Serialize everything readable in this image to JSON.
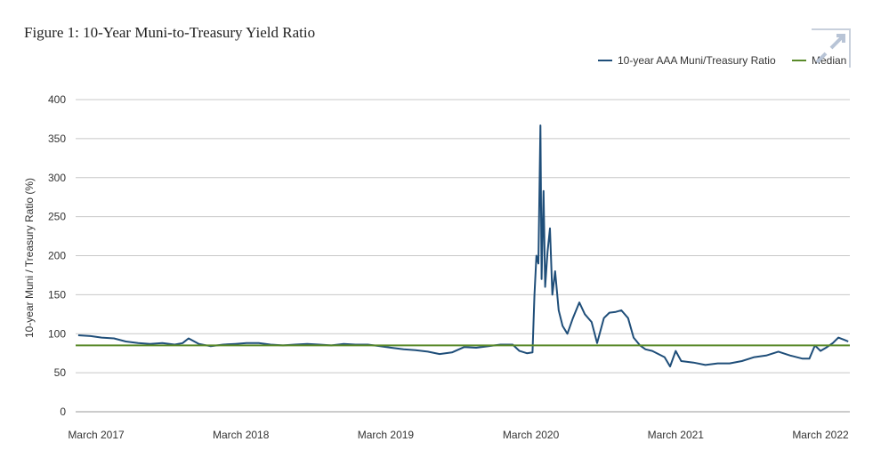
{
  "chart_data": {
    "type": "line",
    "title": "Figure 1: 10-Year Muni-to-Treasury Yield Ratio",
    "ylabel": "10-year Muni / Treasury Ratio (%)",
    "xlabel": "",
    "ylim": [
      0,
      400
    ],
    "yticks": [
      0,
      50,
      100,
      150,
      200,
      250,
      300,
      350,
      400
    ],
    "xticks": [
      {
        "label": "March 2017",
        "date": "2017-03-01"
      },
      {
        "label": "March 2018",
        "date": "2018-03-01"
      },
      {
        "label": "March 2019",
        "date": "2019-03-01"
      },
      {
        "label": "March 2020",
        "date": "2020-03-01"
      },
      {
        "label": "March 2021",
        "date": "2021-03-01"
      },
      {
        "label": "March 2022",
        "date": "2022-03-01"
      }
    ],
    "grid": "horizontal",
    "legend_position": "top-right",
    "series": [
      {
        "name": "10-year AAA Muni/Treasury Ratio",
        "color": "#1f4e79",
        "points": [
          [
            "2017-01-15",
            98
          ],
          [
            "2017-02-15",
            97
          ],
          [
            "2017-03-15",
            95
          ],
          [
            "2017-04-15",
            94
          ],
          [
            "2017-05-15",
            90
          ],
          [
            "2017-06-15",
            88
          ],
          [
            "2017-07-15",
            87
          ],
          [
            "2017-08-15",
            88
          ],
          [
            "2017-09-15",
            86
          ],
          [
            "2017-10-05",
            88
          ],
          [
            "2017-10-20",
            94
          ],
          [
            "2017-11-15",
            87
          ],
          [
            "2017-12-15",
            84
          ],
          [
            "2018-01-15",
            86
          ],
          [
            "2018-02-15",
            87
          ],
          [
            "2018-03-15",
            88
          ],
          [
            "2018-04-15",
            88
          ],
          [
            "2018-05-15",
            86
          ],
          [
            "2018-06-15",
            85
          ],
          [
            "2018-07-15",
            86
          ],
          [
            "2018-08-15",
            87
          ],
          [
            "2018-09-15",
            86
          ],
          [
            "2018-10-15",
            85
          ],
          [
            "2018-11-15",
            87
          ],
          [
            "2018-12-15",
            86
          ],
          [
            "2019-01-15",
            86
          ],
          [
            "2019-02-15",
            84
          ],
          [
            "2019-03-15",
            82
          ],
          [
            "2019-04-15",
            80
          ],
          [
            "2019-05-15",
            79
          ],
          [
            "2019-06-15",
            77
          ],
          [
            "2019-07-15",
            74
          ],
          [
            "2019-08-15",
            76
          ],
          [
            "2019-09-15",
            83
          ],
          [
            "2019-10-15",
            82
          ],
          [
            "2019-11-15",
            84
          ],
          [
            "2019-12-15",
            86
          ],
          [
            "2020-01-15",
            86
          ],
          [
            "2020-02-01",
            78
          ],
          [
            "2020-02-20",
            75
          ],
          [
            "2020-03-05",
            76
          ],
          [
            "2020-03-10",
            150
          ],
          [
            "2020-03-15",
            200
          ],
          [
            "2020-03-20",
            190
          ],
          [
            "2020-03-25",
            367
          ],
          [
            "2020-03-28",
            170
          ],
          [
            "2020-04-02",
            283
          ],
          [
            "2020-04-06",
            160
          ],
          [
            "2020-04-12",
            205
          ],
          [
            "2020-04-18",
            235
          ],
          [
            "2020-04-24",
            150
          ],
          [
            "2020-05-01",
            180
          ],
          [
            "2020-05-10",
            130
          ],
          [
            "2020-05-20",
            110
          ],
          [
            "2020-06-01",
            100
          ],
          [
            "2020-06-15",
            120
          ],
          [
            "2020-07-01",
            140
          ],
          [
            "2020-07-15",
            125
          ],
          [
            "2020-08-01",
            115
          ],
          [
            "2020-08-15",
            88
          ],
          [
            "2020-09-01",
            120
          ],
          [
            "2020-09-15",
            127
          ],
          [
            "2020-10-01",
            128
          ],
          [
            "2020-10-15",
            130
          ],
          [
            "2020-11-01",
            120
          ],
          [
            "2020-11-15",
            95
          ],
          [
            "2020-12-01",
            85
          ],
          [
            "2020-12-15",
            80
          ],
          [
            "2021-01-01",
            78
          ],
          [
            "2021-02-01",
            70
          ],
          [
            "2021-02-15",
            58
          ],
          [
            "2021-03-01",
            78
          ],
          [
            "2021-03-15",
            65
          ],
          [
            "2021-04-15",
            63
          ],
          [
            "2021-05-15",
            60
          ],
          [
            "2021-06-15",
            62
          ],
          [
            "2021-07-15",
            62
          ],
          [
            "2021-08-15",
            65
          ],
          [
            "2021-09-15",
            70
          ],
          [
            "2021-10-15",
            72
          ],
          [
            "2021-11-15",
            77
          ],
          [
            "2021-12-15",
            72
          ],
          [
            "2022-01-15",
            68
          ],
          [
            "2022-02-01",
            68
          ],
          [
            "2022-02-15",
            85
          ],
          [
            "2022-03-01",
            78
          ],
          [
            "2022-03-15",
            82
          ],
          [
            "2022-04-01",
            88
          ],
          [
            "2022-04-15",
            95
          ],
          [
            "2022-05-01",
            92
          ],
          [
            "2022-05-10",
            90
          ]
        ]
      },
      {
        "name": "Median",
        "color": "#5a8a2a",
        "value": 85
      }
    ]
  },
  "overlay": {
    "icon": "expand-icon"
  }
}
